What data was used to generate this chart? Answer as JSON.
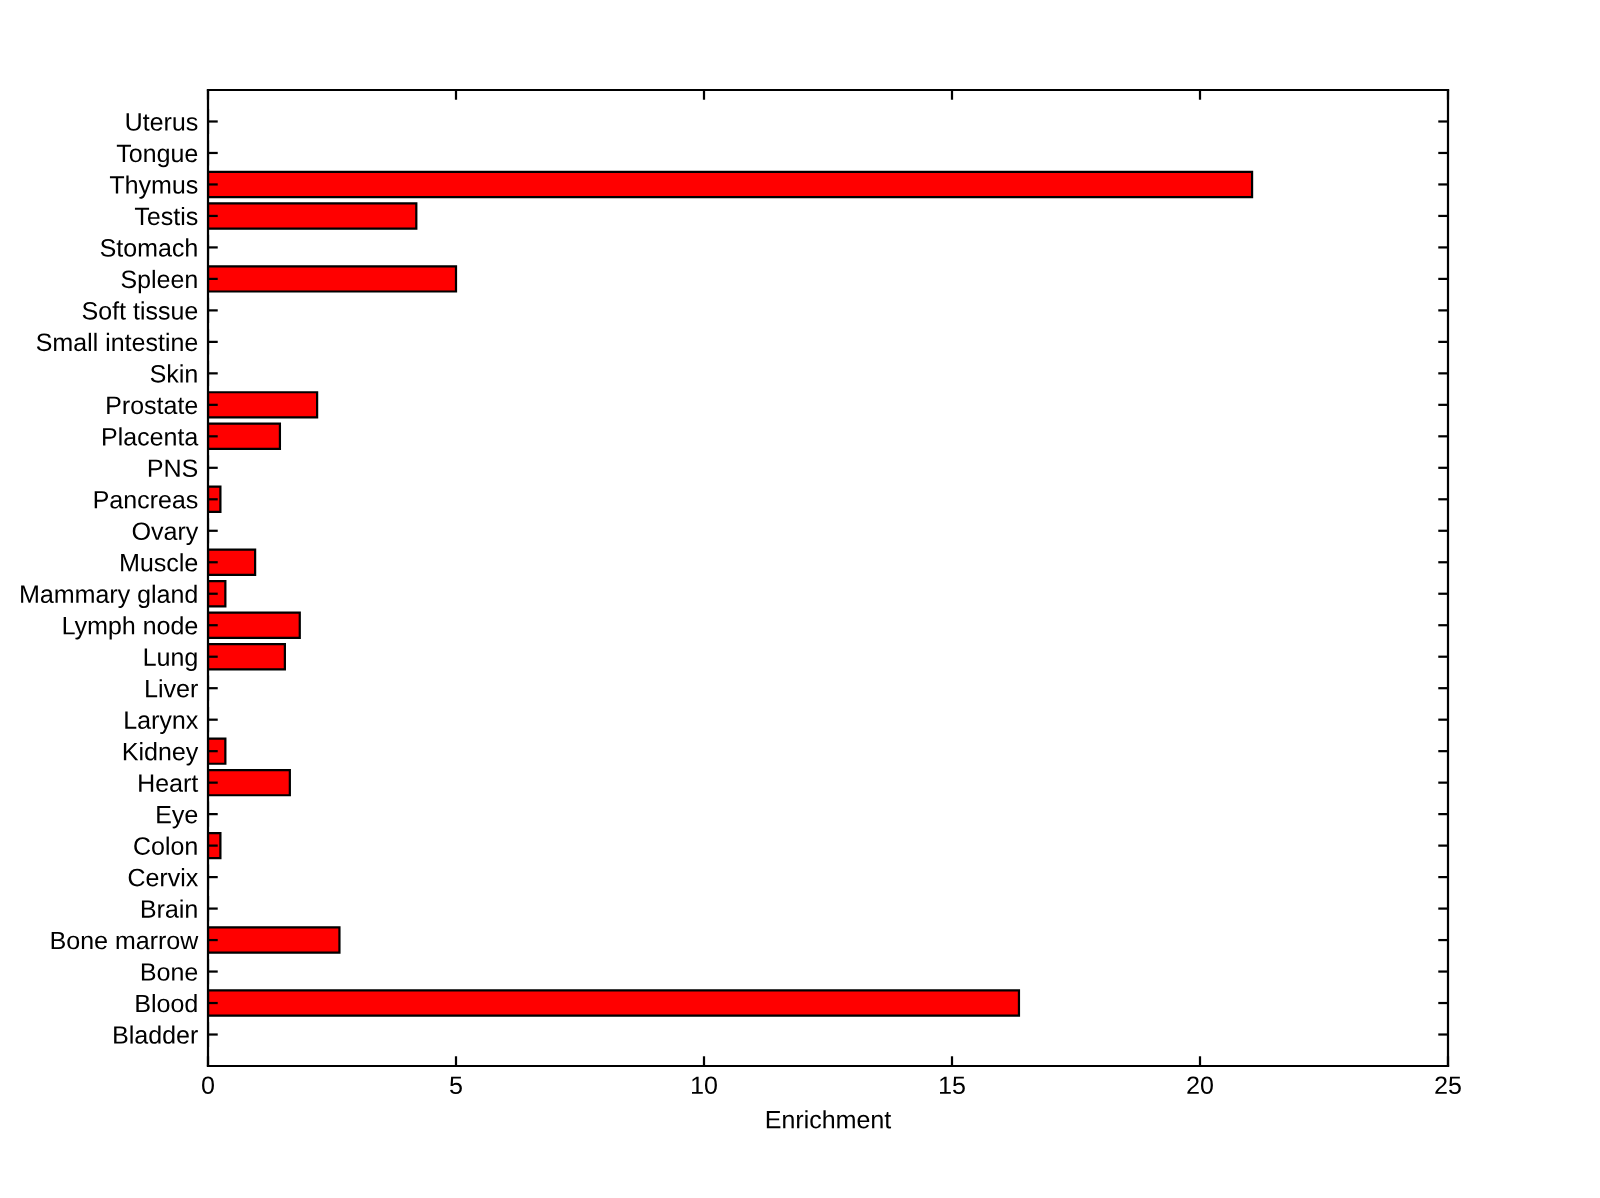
{
  "chart_data": {
    "type": "bar",
    "orientation": "horizontal",
    "xlabel": "Enrichment",
    "categories": [
      "Uterus",
      "Tongue",
      "Thymus",
      "Testis",
      "Stomach",
      "Spleen",
      "Soft tissue",
      "Small intestine",
      "Skin",
      "Prostate",
      "Placenta",
      "PNS",
      "Pancreas",
      "Ovary",
      "Muscle",
      "Mammary gland",
      "Lymph node",
      "Lung",
      "Liver",
      "Larynx",
      "Kidney",
      "Heart",
      "Eye",
      "Colon",
      "Cervix",
      "Brain",
      "Bone marrow",
      "Bone",
      "Blood",
      "Bladder"
    ],
    "values": [
      0,
      0,
      21.05,
      4.2,
      0,
      5.0,
      0,
      0,
      0,
      2.2,
      1.45,
      0,
      0.25,
      0,
      0.95,
      0.35,
      1.85,
      1.55,
      0,
      0,
      0.35,
      1.65,
      0,
      0.25,
      0,
      0,
      2.65,
      0,
      16.35,
      0
    ],
    "color": "#ff0000",
    "xlim": [
      0,
      25
    ],
    "xticks": [
      0,
      5,
      10,
      15,
      20,
      25
    ],
    "grid": false,
    "legend": false
  }
}
